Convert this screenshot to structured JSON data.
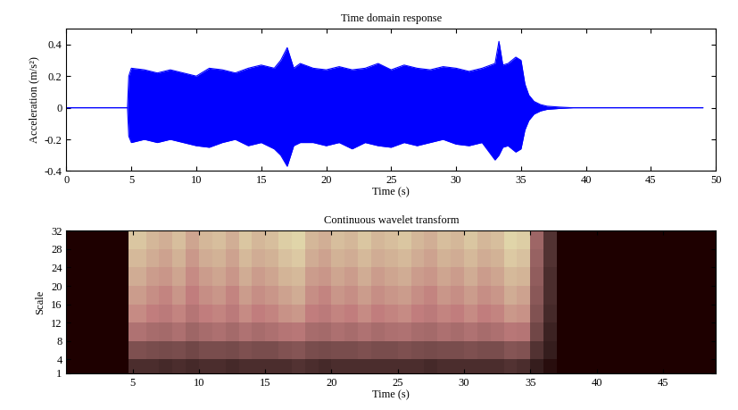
{
  "chart_data": [
    {
      "type": "area",
      "title": "Time domain response",
      "x_label": "Time (s)",
      "y_label": "Acceleration (m/s²)",
      "color": "#0000ff",
      "xlim": [
        0,
        50
      ],
      "xticks": [
        0,
        5,
        10,
        15,
        20,
        25,
        30,
        35,
        40,
        45,
        50
      ],
      "ylim": [
        -0.4,
        0.5
      ],
      "yticks": [
        -0.4,
        -0.2,
        0,
        0.2,
        0.4
      ],
      "x": [
        0,
        4.7,
        4.8,
        5,
        6,
        7,
        8,
        9,
        10,
        11,
        12,
        13,
        14,
        15,
        16,
        16.5,
        17,
        17.5,
        18,
        19,
        20,
        21,
        22,
        23,
        24,
        25,
        26,
        27,
        28,
        29,
        30,
        31,
        32,
        33,
        33.3,
        33.6,
        34,
        34.6,
        35,
        35.3,
        35.6,
        36,
        36.5,
        37,
        38,
        39,
        49
      ],
      "upper": [
        0,
        0,
        0.2,
        0.25,
        0.24,
        0.22,
        0.24,
        0.22,
        0.2,
        0.25,
        0.24,
        0.22,
        0.25,
        0.27,
        0.25,
        0.3,
        0.38,
        0.25,
        0.28,
        0.25,
        0.24,
        0.26,
        0.24,
        0.25,
        0.28,
        0.24,
        0.27,
        0.25,
        0.24,
        0.26,
        0.25,
        0.23,
        0.25,
        0.28,
        0.42,
        0.27,
        0.28,
        0.32,
        0.3,
        0.15,
        0.08,
        0.04,
        0.02,
        0.01,
        0.004,
        0,
        0
      ],
      "lower": [
        0,
        0,
        -0.18,
        -0.22,
        -0.2,
        -0.22,
        -0.2,
        -0.22,
        -0.24,
        -0.25,
        -0.22,
        -0.2,
        -0.24,
        -0.22,
        -0.26,
        -0.3,
        -0.37,
        -0.24,
        -0.22,
        -0.22,
        -0.24,
        -0.22,
        -0.26,
        -0.22,
        -0.24,
        -0.25,
        -0.22,
        -0.24,
        -0.22,
        -0.2,
        -0.23,
        -0.24,
        -0.22,
        -0.33,
        -0.3,
        -0.25,
        -0.24,
        -0.28,
        -0.26,
        -0.14,
        -0.08,
        -0.04,
        -0.02,
        -0.01,
        -0.004,
        0,
        0
      ]
    },
    {
      "type": "heatmap",
      "title": "Continuous wavelet transform",
      "x_label": "Time (s)",
      "y_label": "Scale",
      "xlim": [
        0,
        49
      ],
      "xticks": [
        5,
        10,
        15,
        20,
        25,
        30,
        35,
        40,
        45
      ],
      "ylim": [
        1,
        32
      ],
      "yticks": [
        1,
        4,
        8,
        12,
        16,
        20,
        24,
        28,
        32
      ],
      "zlim": [
        0,
        1
      ],
      "x_edges": [
        0,
        4.7,
        6,
        7,
        8,
        9,
        10,
        11,
        12,
        13,
        14,
        15,
        16,
        17,
        18,
        19,
        20,
        21,
        22,
        23,
        24,
        25,
        26,
        27,
        28,
        29,
        30,
        31,
        32,
        33,
        34,
        35,
        36,
        37,
        49
      ],
      "y_edges": [
        1,
        4,
        8,
        12,
        16,
        20,
        24,
        28,
        32
      ],
      "cells": [
        [
          0,
          0.05,
          0.05,
          0.04,
          0.05,
          0.04,
          0.05,
          0.05,
          0.04,
          0.05,
          0.05,
          0.05,
          0.05,
          0.06,
          0.05,
          0.04,
          0.05,
          0.05,
          0.05,
          0.05,
          0.05,
          0.05,
          0.05,
          0.04,
          0.05,
          0.05,
          0.05,
          0.05,
          0.05,
          0.06,
          0.05,
          0.02,
          0.01,
          0
        ],
        [
          0,
          0.15,
          0.14,
          0.13,
          0.14,
          0.12,
          0.14,
          0.14,
          0.13,
          0.15,
          0.14,
          0.14,
          0.16,
          0.17,
          0.14,
          0.13,
          0.14,
          0.14,
          0.15,
          0.14,
          0.14,
          0.15,
          0.14,
          0.13,
          0.14,
          0.14,
          0.15,
          0.14,
          0.14,
          0.17,
          0.16,
          0.06,
          0.02,
          0
        ],
        [
          0,
          0.3,
          0.27,
          0.26,
          0.29,
          0.24,
          0.27,
          0.29,
          0.26,
          0.3,
          0.27,
          0.29,
          0.32,
          0.33,
          0.27,
          0.26,
          0.29,
          0.27,
          0.3,
          0.27,
          0.29,
          0.3,
          0.27,
          0.26,
          0.29,
          0.27,
          0.3,
          0.27,
          0.29,
          0.33,
          0.32,
          0.12,
          0.03,
          0
        ],
        [
          0,
          0.4,
          0.36,
          0.34,
          0.38,
          0.32,
          0.36,
          0.38,
          0.34,
          0.4,
          0.36,
          0.38,
          0.42,
          0.44,
          0.36,
          0.34,
          0.38,
          0.36,
          0.4,
          0.36,
          0.38,
          0.4,
          0.36,
          0.34,
          0.38,
          0.36,
          0.4,
          0.36,
          0.38,
          0.44,
          0.42,
          0.16,
          0.04,
          0
        ],
        [
          0,
          0.45,
          0.41,
          0.38,
          0.43,
          0.36,
          0.41,
          0.43,
          0.38,
          0.45,
          0.41,
          0.43,
          0.47,
          0.5,
          0.41,
          0.38,
          0.43,
          0.41,
          0.45,
          0.41,
          0.43,
          0.45,
          0.41,
          0.38,
          0.43,
          0.41,
          0.45,
          0.41,
          0.43,
          0.5,
          0.47,
          0.18,
          0.05,
          0
        ],
        [
          0,
          0.5,
          0.45,
          0.43,
          0.48,
          0.4,
          0.45,
          0.48,
          0.43,
          0.5,
          0.45,
          0.48,
          0.53,
          0.55,
          0.45,
          0.43,
          0.48,
          0.45,
          0.5,
          0.45,
          0.48,
          0.5,
          0.45,
          0.43,
          0.48,
          0.45,
          0.5,
          0.45,
          0.48,
          0.55,
          0.53,
          0.2,
          0.05,
          0
        ],
        [
          0,
          0.55,
          0.5,
          0.47,
          0.52,
          0.44,
          0.5,
          0.52,
          0.47,
          0.55,
          0.5,
          0.52,
          0.58,
          0.61,
          0.5,
          0.47,
          0.52,
          0.5,
          0.55,
          0.5,
          0.52,
          0.55,
          0.5,
          0.47,
          0.52,
          0.5,
          0.55,
          0.5,
          0.52,
          0.61,
          0.58,
          0.22,
          0.06,
          0
        ],
        [
          0,
          0.6,
          0.54,
          0.51,
          0.57,
          0.48,
          0.54,
          0.57,
          0.51,
          0.6,
          0.54,
          0.57,
          0.63,
          0.66,
          0.54,
          0.51,
          0.57,
          0.54,
          0.6,
          0.54,
          0.57,
          0.6,
          0.54,
          0.51,
          0.57,
          0.54,
          0.6,
          0.54,
          0.57,
          0.66,
          0.63,
          0.24,
          0.06,
          0
        ]
      ]
    }
  ]
}
